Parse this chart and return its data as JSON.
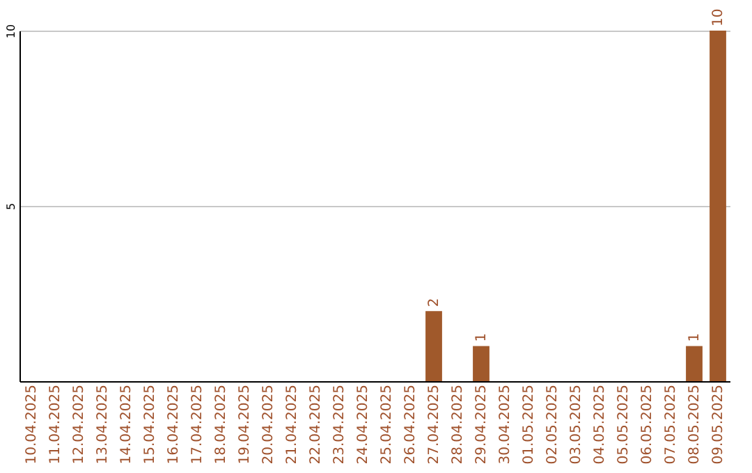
{
  "chart_data": {
    "type": "bar",
    "categories": [
      "10.04.2025",
      "11.04.2025",
      "12.04.2025",
      "13.04.2025",
      "14.04.2025",
      "15.04.2025",
      "16.04.2025",
      "17.04.2025",
      "18.04.2025",
      "19.04.2025",
      "20.04.2025",
      "21.04.2025",
      "22.04.2025",
      "23.04.2025",
      "24.04.2025",
      "25.04.2025",
      "26.04.2025",
      "27.04.2025",
      "28.04.2025",
      "29.04.2025",
      "30.04.2025",
      "01.05.2025",
      "02.05.2025",
      "03.05.2025",
      "04.05.2025",
      "05.05.2025",
      "06.05.2025",
      "07.05.2025",
      "08.05.2025",
      "09.05.2025"
    ],
    "values": [
      0,
      0,
      0,
      0,
      0,
      0,
      0,
      0,
      0,
      0,
      0,
      0,
      0,
      0,
      0,
      0,
      0,
      2,
      0,
      1,
      0,
      0,
      0,
      0,
      0,
      0,
      0,
      0,
      1,
      10
    ],
    "value_labels": [
      null,
      null,
      null,
      null,
      null,
      null,
      null,
      null,
      null,
      null,
      null,
      null,
      null,
      null,
      null,
      null,
      null,
      "2",
      null,
      "1",
      null,
      null,
      null,
      null,
      null,
      null,
      null,
      null,
      "1",
      "10"
    ],
    "color": "#a0592b",
    "ylim": [
      0,
      10
    ],
    "yticks": [
      5,
      10
    ],
    "grid": "y"
  }
}
